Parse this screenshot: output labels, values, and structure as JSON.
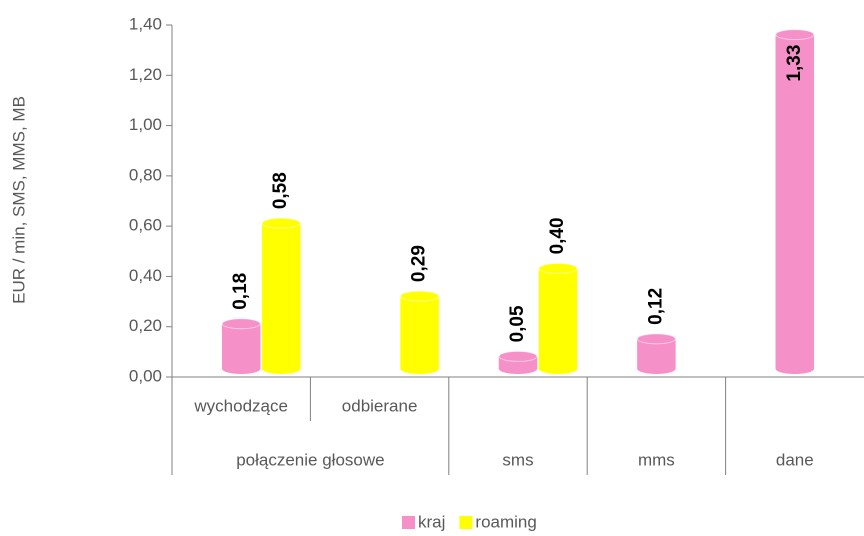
{
  "chart_data": {
    "type": "bar",
    "y_label": "EUR / min, SMS, MMS, MB",
    "categories": [
      "wychodzące",
      "odbierane",
      null,
      null,
      null
    ],
    "groups": [
      {
        "label": "połączenie głosowe",
        "span": 2
      },
      {
        "label": "sms",
        "span": 1
      },
      {
        "label": "mms",
        "span": 1
      },
      {
        "label": "dane",
        "span": 1
      }
    ],
    "series": [
      {
        "name": "kraj",
        "color": "#f590c8",
        "values": [
          0.18,
          null,
          0.05,
          0.12,
          1.33
        ],
        "value_labels": [
          "0,18",
          null,
          "0,05",
          "0,12",
          "1,33"
        ]
      },
      {
        "name": "roaming",
        "color": "#ffff00",
        "values": [
          0.58,
          0.29,
          0.4,
          null,
          null
        ],
        "value_labels": [
          "0,58",
          "0,29",
          "0,40",
          null,
          null
        ]
      }
    ],
    "ylim": [
      0,
      1.4
    ],
    "yticks": [
      {
        "value": 0,
        "label": "0,00"
      },
      {
        "value": 0.2,
        "label": "0,20"
      },
      {
        "value": 0.4,
        "label": "0,40"
      },
      {
        "value": 0.6,
        "label": "0,60"
      },
      {
        "value": 0.8,
        "label": "0,80"
      },
      {
        "value": 1.0,
        "label": "1,00"
      },
      {
        "value": 1.2,
        "label": "1,20"
      },
      {
        "value": 1.4,
        "label": "1,40"
      }
    ],
    "legend": "bottom"
  }
}
